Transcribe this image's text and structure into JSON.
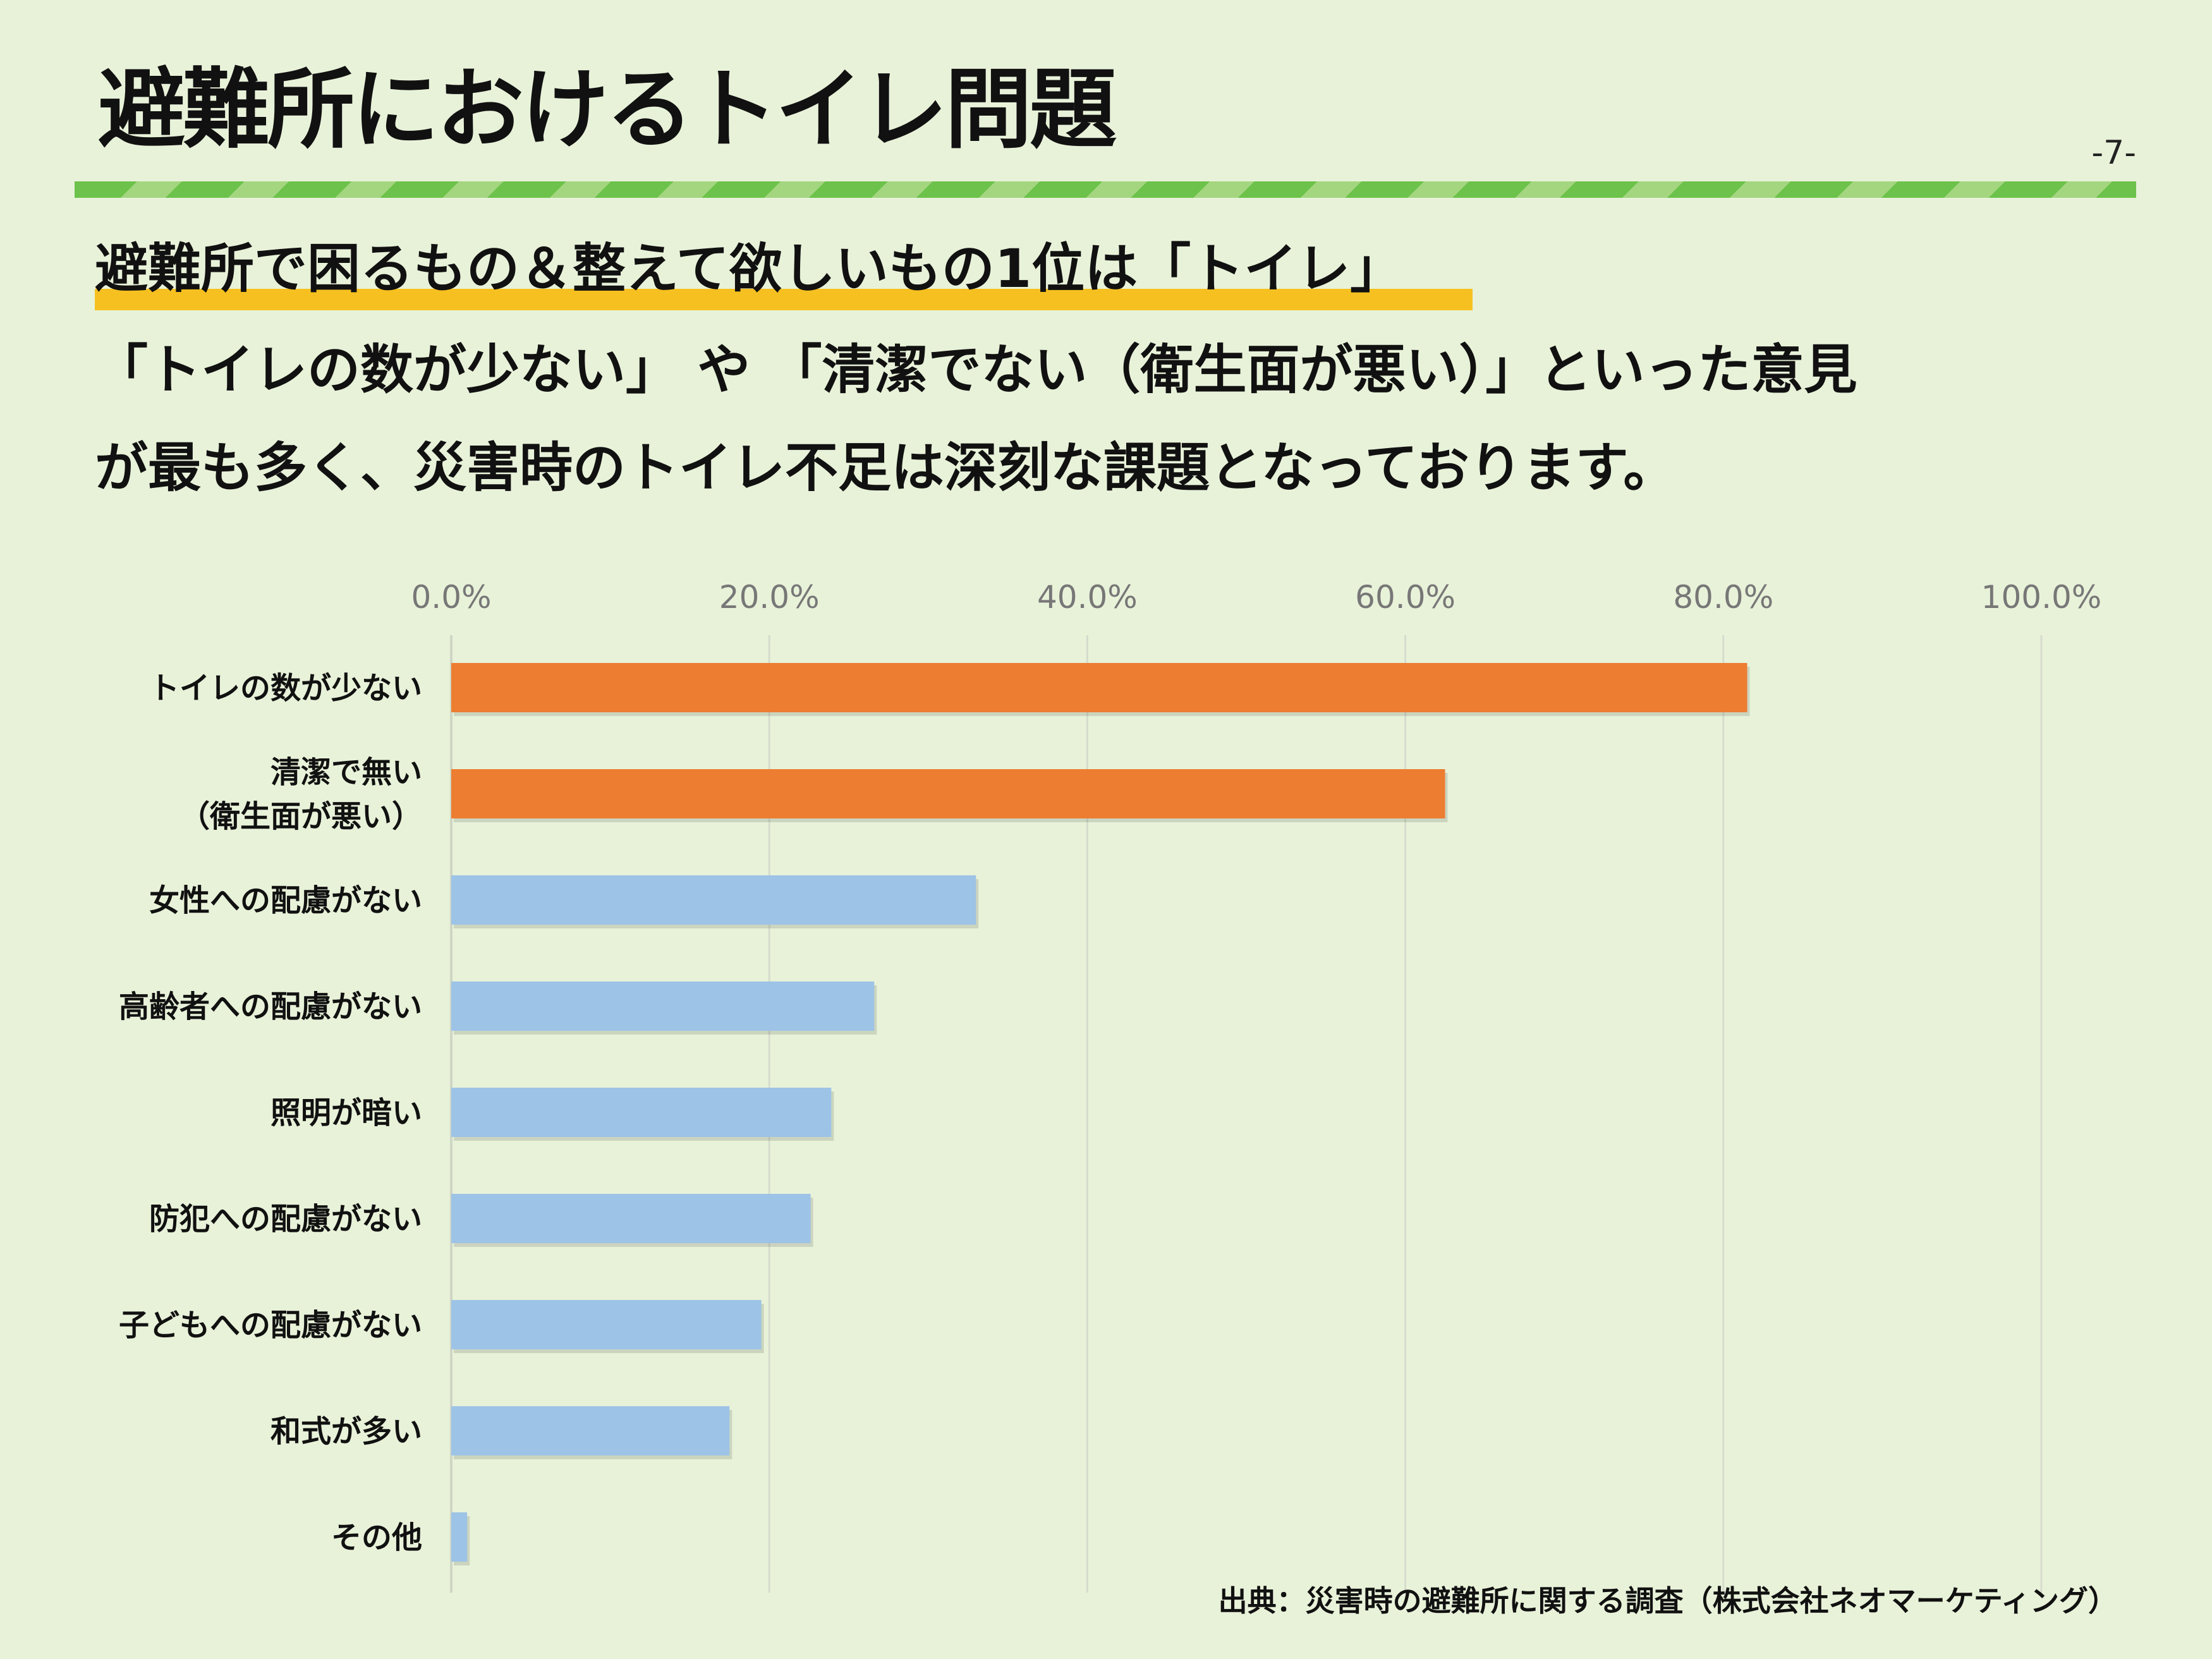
{
  "slide": {
    "title": "避難所におけるトイレ問題",
    "page_number": "-7-",
    "headline": "避難所で困るもの＆整えて欲しいもの1位は「トイレ」",
    "body_lines": [
      "「トイレの数が少ない」 や 「清潔でない（衛生面が悪い）」といった意見",
      "が最も多く、災害時のトイレ不足は深刻な課題となっております。"
    ],
    "source": "出典：災害時の避難所に関する調査（株式会社ネオマーケティング）"
  },
  "colors": {
    "background": "#e8f2d9",
    "highlight": "#ed7d31",
    "normal": "#9dc3e6",
    "marker": "#f6c120",
    "rule": "#6cc24a"
  },
  "chart_data": {
    "type": "bar",
    "orientation": "horizontal",
    "categories": [
      [
        "トイレの数が少ない"
      ],
      [
        "清潔で無い",
        "（衛生面が悪い）"
      ],
      [
        "女性への配慮がない"
      ],
      [
        "高齢者への配慮がない"
      ],
      [
        "照明が暗い"
      ],
      [
        "防犯への配慮がない"
      ],
      [
        "子どもへの配慮がない"
      ],
      [
        "和式が多い"
      ],
      [
        "その他"
      ]
    ],
    "values": [
      81.5,
      62.5,
      33.0,
      26.6,
      23.9,
      22.6,
      19.5,
      17.5,
      1.0
    ],
    "highlighted": [
      true,
      true,
      false,
      false,
      false,
      false,
      false,
      false,
      false
    ],
    "xlim": [
      0,
      100
    ],
    "xticks": [
      "0.0%",
      "20.0%",
      "40.0%",
      "60.0%",
      "80.0%",
      "100.0%"
    ],
    "axis_position": "top",
    "grid": true
  }
}
